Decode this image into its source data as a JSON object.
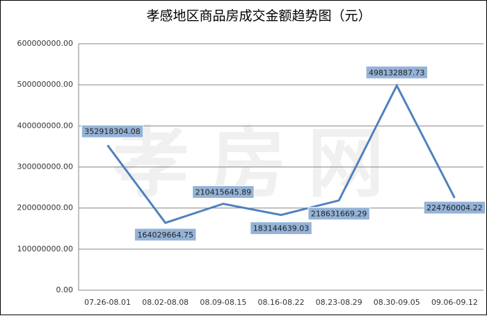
{
  "chart_data": {
    "type": "line",
    "title": "孝感地区商品房成交金额趋势图（元）",
    "watermark": "孝房网",
    "categories": [
      "07.26-08.01",
      "08.02-08.08",
      "08.09-08.15",
      "08.16-08.22",
      "08.23-08.29",
      "08.30-09.05",
      "09.06-09.12"
    ],
    "series": [
      {
        "name": "成交金额",
        "color": "#4f81bd",
        "values": [
          352918304.08,
          164029664.75,
          210415645.89,
          183144639.03,
          218631669.29,
          498132887.73,
          224760004.22
        ]
      }
    ],
    "ylim": [
      0,
      600000000
    ],
    "yticks": [
      {
        "value": 0,
        "label": "0.00"
      },
      {
        "value": 100000000,
        "label": "100000000.00"
      },
      {
        "value": 200000000,
        "label": "200000000.00"
      },
      {
        "value": 300000000,
        "label": "300000000.00"
      },
      {
        "value": 400000000,
        "label": "400000000.00"
      },
      {
        "value": 500000000,
        "label": "500000000.00"
      },
      {
        "value": 600000000,
        "label": "600000000.00"
      }
    ],
    "grid": true
  }
}
